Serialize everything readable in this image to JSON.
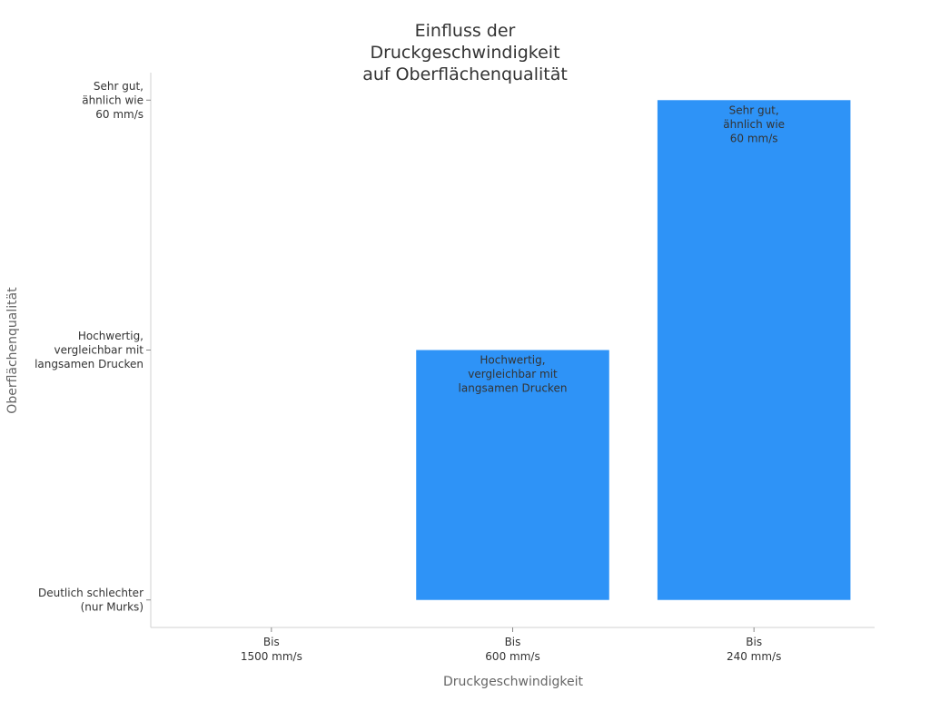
{
  "chart_data": {
    "type": "bar",
    "title": [
      "Einfluss der",
      "Druckgeschwindigkeit",
      "auf Oberflächenqualität"
    ],
    "xlabel": "Druckgeschwindigkeit",
    "ylabel": "Oberflächenqualität",
    "categories": [
      [
        "Bis",
        "1500 mm/s"
      ],
      [
        "Bis",
        "600 mm/s"
      ],
      [
        "Bis",
        "240 mm/s"
      ]
    ],
    "y_levels": [
      [
        "Deutlich schlechter",
        "(nur Murks)"
      ],
      [
        "Hochwertig,",
        "vergleichbar mit",
        "langsamen Drucken"
      ],
      [
        "Sehr gut,",
        "ähnlich wie",
        "60 mm/s"
      ]
    ],
    "values": [
      0,
      1,
      2
    ],
    "data_labels": [
      [],
      [
        "Hochwertig,",
        "vergleichbar mit",
        "langsamen Drucken"
      ],
      [
        "Sehr gut,",
        "ähnlich wie",
        "60 mm/s"
      ]
    ],
    "ylim": [
      -0.11,
      2.11
    ],
    "grid": false,
    "colors": {
      "bar": "#2e93f7",
      "axis": "#d0d0d0",
      "text": "#333333"
    }
  }
}
